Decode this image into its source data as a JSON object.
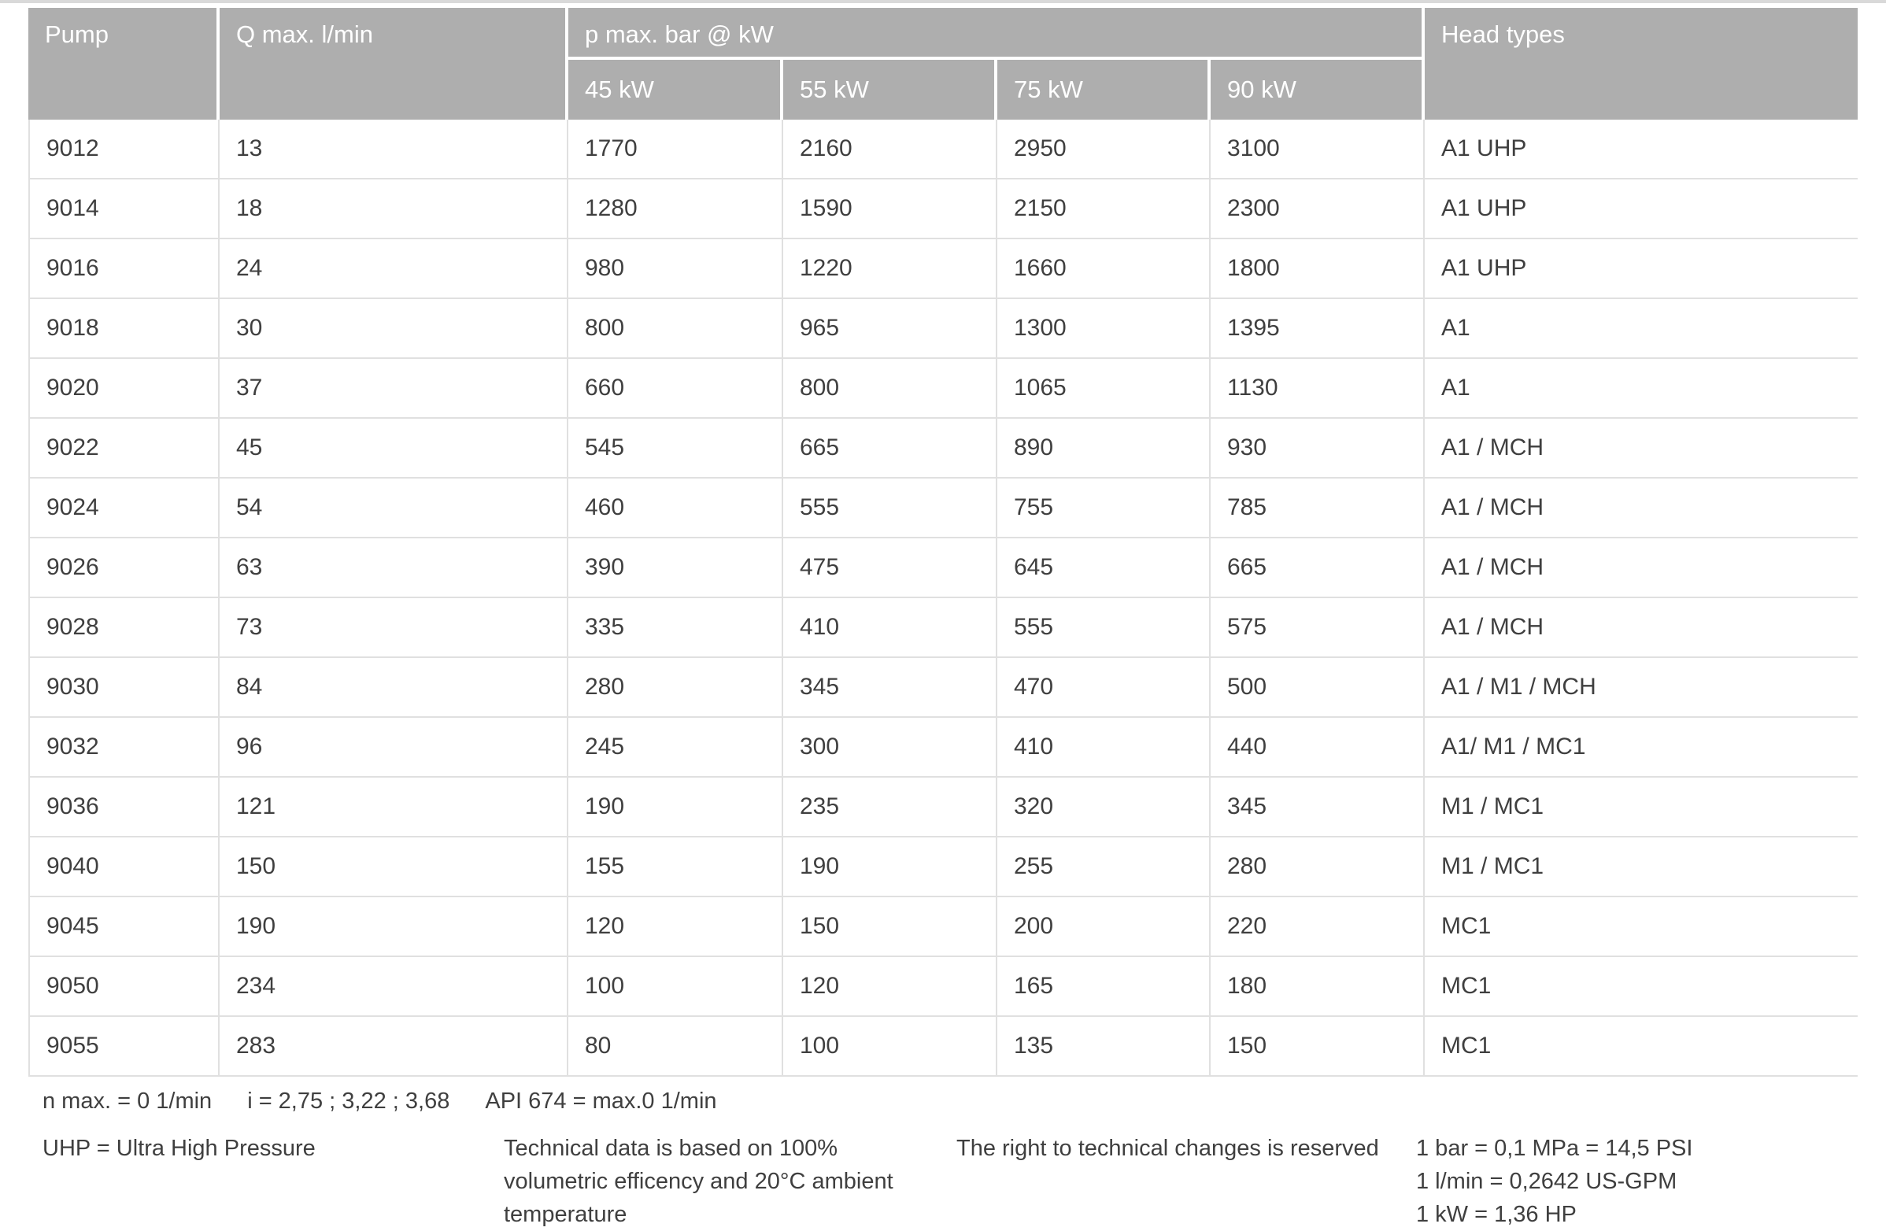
{
  "colors": {
    "header_bg": "#aeaeae",
    "header_text": "#ffffff",
    "body_text": "#3f3f3f",
    "grid_line": "#e0e0e0",
    "top_rule": "#d9d9d9"
  },
  "table": {
    "header": {
      "pump_label": "Pump",
      "q_label": "Q max. l/min",
      "p_group_label": "p max. bar @ kW",
      "kw_labels": [
        "45 kW",
        "55 kW",
        "75 kW",
        "90 kW"
      ],
      "head_label": "Head types"
    },
    "rows": [
      [
        "9012",
        "13",
        "1770",
        "2160",
        "2950",
        "3100",
        "A1 UHP"
      ],
      [
        "9014",
        "18",
        "1280",
        "1590",
        "2150",
        "2300",
        "A1 UHP"
      ],
      [
        "9016",
        "24",
        "980",
        "1220",
        "1660",
        "1800",
        "A1 UHP"
      ],
      [
        "9018",
        "30",
        "800",
        "965",
        "1300",
        "1395",
        "A1"
      ],
      [
        "9020",
        "37",
        "660",
        "800",
        "1065",
        "1130",
        "A1"
      ],
      [
        "9022",
        "45",
        "545",
        "665",
        "890",
        "930",
        "A1 / MCH"
      ],
      [
        "9024",
        "54",
        "460",
        "555",
        "755",
        "785",
        "A1 / MCH"
      ],
      [
        "9026",
        "63",
        "390",
        "475",
        "645",
        "665",
        "A1 / MCH"
      ],
      [
        "9028",
        "73",
        "335",
        "410",
        "555",
        "575",
        "A1 / MCH"
      ],
      [
        "9030",
        "84",
        "280",
        "345",
        "470",
        "500",
        "A1 / M1 / MCH"
      ],
      [
        "9032",
        "96",
        "245",
        "300",
        "410",
        "440",
        "A1/ M1 / MC1"
      ],
      [
        "9036",
        "121",
        "190",
        "235",
        "320",
        "345",
        "M1 / MC1"
      ],
      [
        "9040",
        "150",
        "155",
        "190",
        "255",
        "280",
        "M1 / MC1"
      ],
      [
        "9045",
        "190",
        "120",
        "150",
        "200",
        "220",
        "MC1"
      ],
      [
        "9050",
        "234",
        "100",
        "120",
        "165",
        "180",
        "MC1"
      ],
      [
        "9055",
        "283",
        "80",
        "100",
        "135",
        "150",
        "MC1"
      ]
    ]
  },
  "notes": {
    "n_max": "n max. = 0 1/min",
    "i_ratios": "i = 2,75 ; 3,22 ; 3,68",
    "api": "API 674 = max.0 1/min"
  },
  "footer": {
    "uhp": "UHP = Ultra High Pressure",
    "technical_lines": [
      "Technical data is based on 100%",
      "volumetric efficency and 20°C ambient",
      "temperature"
    ],
    "rights": "The right to technical changes is reserved",
    "conversions": [
      "1 bar = 0,1 MPa = 14,5 PSI",
      "1 l/min = 0,2642 US-GPM",
      "1 kW = 1,36 HP"
    ]
  }
}
